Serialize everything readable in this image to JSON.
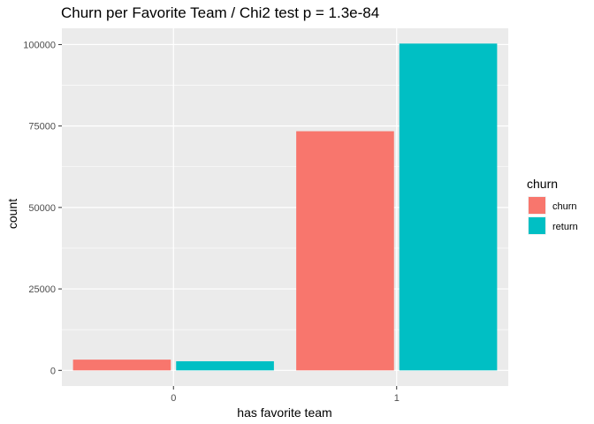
{
  "chart_data": {
    "type": "bar",
    "title": "Churn per Favorite Team / Chi2 test p = 1.3e-84",
    "xlabel": "has favorite team",
    "ylabel": "count",
    "categories": [
      "0",
      "1"
    ],
    "series": [
      {
        "name": "churn",
        "color": "#F8766D",
        "values": [
          3300,
          73400
        ]
      },
      {
        "name": "return",
        "color": "#00BFC4",
        "values": [
          2800,
          100300
        ]
      }
    ],
    "ylim": [
      -4800,
      105000
    ],
    "yticks": [
      0,
      25000,
      50000,
      75000,
      100000
    ],
    "ytick_labels": [
      "0",
      "25000",
      "50000",
      "75000",
      "100000"
    ],
    "grid": true,
    "legend": {
      "title": "churn",
      "position": "right"
    },
    "panel_background": "#EBEBEB",
    "gridline_color": "#FFFFFF"
  }
}
